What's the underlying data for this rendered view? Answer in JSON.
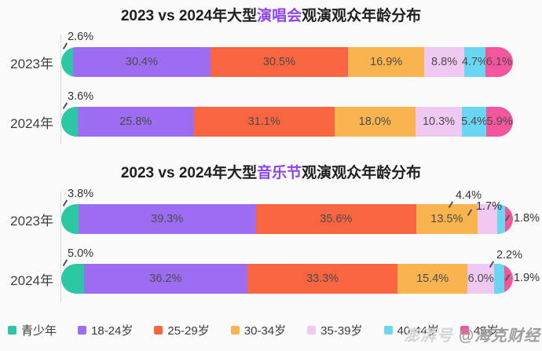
{
  "page": {
    "background": "#fbfbfb",
    "watermark": {
      "platform": "澎湃号",
      "account": "@海克财经"
    }
  },
  "palette": [
    "#2cc7a3",
    "#9c6df0",
    "#f86540",
    "#f9b44f",
    "#efc9f2",
    "#69d6f2",
    "#f4569e"
  ],
  "charts": [
    {
      "title": {
        "prefix": "2023 vs 2024年大型",
        "highlight": "演唱会",
        "suffix": "观演观众年龄分布"
      },
      "rows": [
        {
          "label": "2023年",
          "segments": [
            {
              "text": "2.6%",
              "value": 2.6,
              "pos": "above"
            },
            {
              "text": "30.4%",
              "value": 30.4,
              "pos": "inside"
            },
            {
              "text": "30.5%",
              "value": 30.5,
              "pos": "inside"
            },
            {
              "text": "16.9%",
              "value": 16.9,
              "pos": "inside"
            },
            {
              "text": "8.8%",
              "value": 8.8,
              "pos": "inside"
            },
            {
              "text": "4.7%",
              "value": 4.7,
              "pos": "inside"
            },
            {
              "text": "6.1%",
              "value": 6.1,
              "pos": "inside"
            }
          ]
        },
        {
          "label": "2024年",
          "segments": [
            {
              "text": "3.6%",
              "value": 3.6,
              "pos": "above"
            },
            {
              "text": "25.8%",
              "value": 25.8,
              "pos": "inside"
            },
            {
              "text": "31.1%",
              "value": 31.1,
              "pos": "inside"
            },
            {
              "text": "18.0%",
              "value": 18.0,
              "pos": "inside"
            },
            {
              "text": "10.3%",
              "value": 10.3,
              "pos": "inside"
            },
            {
              "text": "5.4%",
              "value": 5.4,
              "pos": "inside"
            },
            {
              "text": "5.9%",
              "value": 5.9,
              "pos": "inside"
            }
          ]
        }
      ]
    },
    {
      "title": {
        "prefix": "2023 vs 2024年大型",
        "highlight": "音乐节",
        "suffix": "观演观众年龄分布"
      },
      "rows": [
        {
          "label": "2023年",
          "segments": [
            {
              "text": "3.8%",
              "value": 3.8,
              "pos": "above"
            },
            {
              "text": "39.3%",
              "value": 39.3,
              "pos": "inside"
            },
            {
              "text": "35.6%",
              "value": 35.6,
              "pos": "inside"
            },
            {
              "text": "13.5%",
              "value": 13.5,
              "pos": "inside"
            },
            {
              "text": "4.4%",
              "value": 4.4,
              "pos": "out-a"
            },
            {
              "text": "1.7%",
              "value": 1.7,
              "pos": "out-b"
            },
            {
              "text": "1.8%",
              "value": 1.8,
              "pos": "out-c"
            }
          ]
        },
        {
          "label": "2024年",
          "segments": [
            {
              "text": "5.0%",
              "value": 5.0,
              "pos": "above"
            },
            {
              "text": "36.2%",
              "value": 36.2,
              "pos": "inside"
            },
            {
              "text": "33.3%",
              "value": 33.3,
              "pos": "inside"
            },
            {
              "text": "15.4%",
              "value": 15.4,
              "pos": "inside"
            },
            {
              "text": "6.0%",
              "value": 6.0,
              "pos": "inside"
            },
            {
              "text": "2.2%",
              "value": 2.2,
              "pos": "out-d"
            },
            {
              "text": "1.9%",
              "value": 1.9,
              "pos": "out-c"
            }
          ]
        }
      ]
    }
  ],
  "legend": [
    {
      "label": "青少年"
    },
    {
      "label": "18-24岁"
    },
    {
      "label": "25-29岁"
    },
    {
      "label": "30-34岁"
    },
    {
      "label": "35-39岁"
    },
    {
      "label": "40-44岁"
    },
    {
      "label": "45岁+",
      "obscured_by_watermark": true
    }
  ],
  "chart_data": [
    {
      "type": "bar",
      "subtype": "horizontal-stacked",
      "title": "2023 vs 2024年大型演唱会观演观众年龄分布",
      "categories": [
        "2023年",
        "2024年"
      ],
      "series": [
        {
          "name": "青少年",
          "values": [
            2.6,
            3.6
          ]
        },
        {
          "name": "18-24岁",
          "values": [
            30.4,
            25.8
          ]
        },
        {
          "name": "25-29岁",
          "values": [
            30.5,
            31.1
          ]
        },
        {
          "name": "30-34岁",
          "values": [
            16.9,
            18.0
          ]
        },
        {
          "name": "35-39岁",
          "values": [
            8.8,
            10.3
          ]
        },
        {
          "name": "40-44岁",
          "values": [
            4.7,
            5.4
          ]
        },
        {
          "name": "45岁+",
          "values": [
            6.1,
            5.9
          ]
        }
      ],
      "unit": "%",
      "xlim": [
        0,
        100
      ],
      "grid": false,
      "legend_position": "bottom"
    },
    {
      "type": "bar",
      "subtype": "horizontal-stacked",
      "title": "2023 vs 2024年大型音乐节观演观众年龄分布",
      "categories": [
        "2023年",
        "2024年"
      ],
      "series": [
        {
          "name": "青少年",
          "values": [
            3.8,
            5.0
          ]
        },
        {
          "name": "18-24岁",
          "values": [
            39.3,
            36.2
          ]
        },
        {
          "name": "25-29岁",
          "values": [
            35.6,
            33.3
          ]
        },
        {
          "name": "30-34岁",
          "values": [
            13.5,
            15.4
          ]
        },
        {
          "name": "35-39岁",
          "values": [
            4.4,
            6.0
          ]
        },
        {
          "name": "40-44岁",
          "values": [
            1.7,
            2.2
          ]
        },
        {
          "name": "45岁+",
          "values": [
            1.8,
            1.9
          ]
        }
      ],
      "unit": "%",
      "xlim": [
        0,
        100
      ],
      "grid": false,
      "legend_position": "bottom"
    }
  ]
}
